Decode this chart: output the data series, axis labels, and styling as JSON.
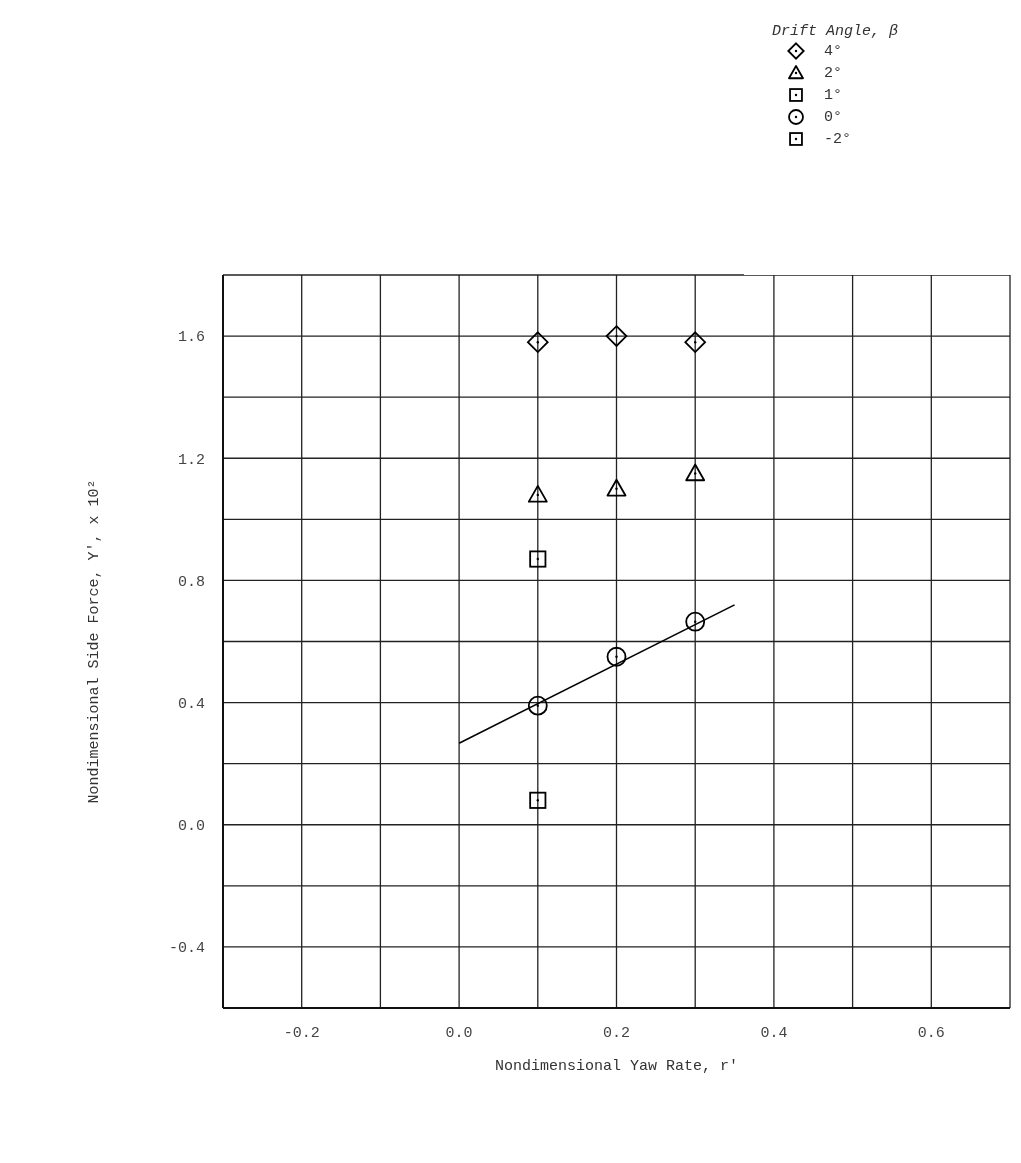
{
  "chart_data": {
    "type": "scatter",
    "xlabel": "Nondimensional Yaw Rate, r'",
    "ylabel": "Nondimensional Side Force, Y', x 10²",
    "legend_title": "Drift Angle, β",
    "legend": "top right",
    "grid": true,
    "xlim": [
      -0.3,
      0.7
    ],
    "ylim": [
      -0.6,
      1.8
    ],
    "xticks": [
      {
        "value": -0.3,
        "label": null
      },
      -0.2,
      {
        "value": -0.1,
        "label": null
      },
      {
        "value": 0,
        "label": "0.0"
      },
      {
        "value": 0.1,
        "label": null
      },
      0.2,
      {
        "value": 0.3,
        "label": null
      },
      0.4,
      {
        "value": 0.5,
        "label": null
      },
      0.6,
      {
        "value": 0.7,
        "label": null
      }
    ],
    "yticks": [
      {
        "value": -0.6,
        "label": null
      },
      -0.4,
      {
        "value": -0.2,
        "label": null
      },
      {
        "value": 0,
        "label": "0.0"
      },
      {
        "value": 0.2,
        "label": null
      },
      0.4,
      {
        "value": 0.6,
        "label": null
      },
      0.8,
      {
        "value": 1.0,
        "label": null
      },
      1.2,
      {
        "value": 1.4,
        "label": null
      },
      1.6,
      {
        "value": 1.8,
        "label": null
      }
    ],
    "series": [
      {
        "name": "4°",
        "color": "#000000",
        "marker": "diamond",
        "x": [
          0.1,
          0.2,
          0.3
        ],
        "values": [
          1.58,
          1.6,
          1.58
        ]
      },
      {
        "name": "2°",
        "color": "#000000",
        "marker": "triangle",
        "x": [
          0.1,
          0.2,
          0.3
        ],
        "values": [
          1.08,
          1.1,
          1.15
        ]
      },
      {
        "name": "1°",
        "color": "#000000",
        "marker": "square",
        "x": [
          0.1
        ],
        "values": [
          0.87
        ]
      },
      {
        "name": "0°",
        "color": "#000000",
        "marker": "circle",
        "x": [
          0.1,
          0.2,
          0.3
        ],
        "values": [
          0.39,
          0.55,
          0.665
        ]
      },
      {
        "name": "-2°",
        "color": "#000000",
        "marker": "square",
        "x": [
          0.1
        ],
        "values": [
          0.08
        ]
      },
      {
        "type": "line",
        "color": "#000000",
        "marker": "none",
        "line_style": "solid",
        "x": [
          0,
          0.35
        ],
        "values": [
          0.267,
          0.72
        ]
      }
    ]
  }
}
